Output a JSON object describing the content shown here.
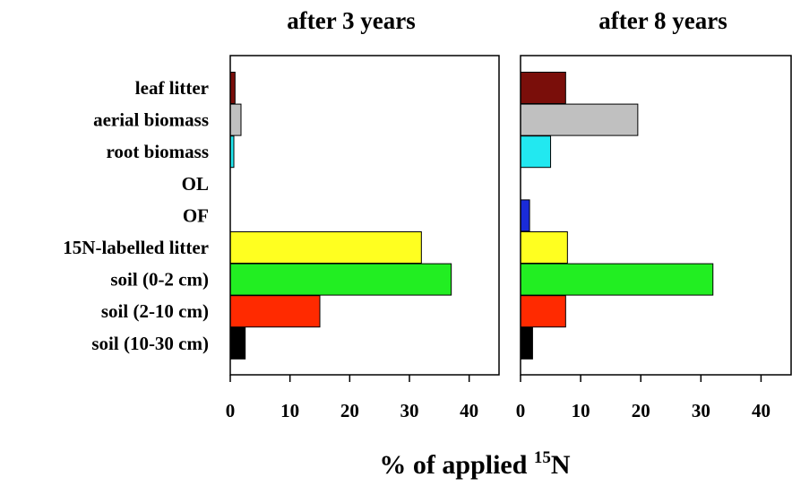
{
  "chart_data": {
    "type": "bar",
    "orientation": "horizontal",
    "categories": [
      "leaf litter",
      "aerial biomass",
      "root biomass",
      "OL",
      "OF",
      "15N-labelled litter",
      "soil (0-2 cm)",
      "soil (2-10 cm)",
      "soil (10-30 cm)"
    ],
    "bar_colors": [
      "#7a0e0a",
      "#c0c0c0",
      "#22e8f0",
      "#ffffff",
      "#1a2bd8",
      "#ffff20",
      "#22ee22",
      "#ff2a00",
      "#000000"
    ],
    "xlabel_main": "% of applied ",
    "xlabel_sup": "15",
    "xlabel_end": "N",
    "xlim": [
      0,
      45
    ],
    "xticks": [
      "0",
      "10",
      "20",
      "30",
      "40"
    ],
    "panels": [
      {
        "title": "after 3 years",
        "values": [
          0.8,
          1.8,
          0.6,
          0,
          0,
          32,
          37,
          15,
          2.5
        ]
      },
      {
        "title": "after 8 years",
        "values": [
          7.5,
          19.5,
          5,
          0,
          1.5,
          7.8,
          32,
          7.5,
          2
        ]
      }
    ]
  }
}
